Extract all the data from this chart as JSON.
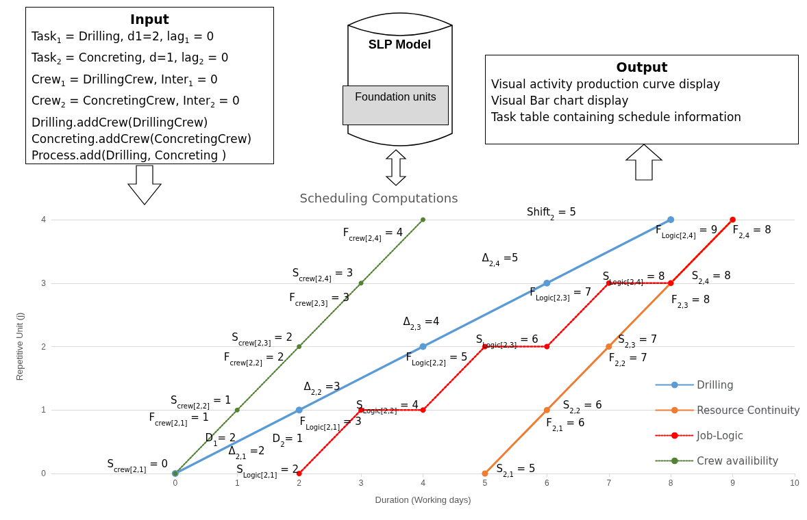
{
  "chart_data": {
    "type": "line",
    "title": "Scheduling Computations",
    "xlabel": "Duration (Working days)",
    "ylabel": "Repetitive Unit (j)",
    "xlim": [
      -2,
      10
    ],
    "xticks": [
      0,
      1,
      2,
      3,
      4,
      5,
      6,
      7,
      8,
      9,
      10
    ],
    "ylim": [
      0,
      4
    ],
    "yticks": [
      0,
      1,
      2,
      3,
      4
    ],
    "grid": "y",
    "legend": "bottom right",
    "marker": "circle",
    "series": [
      {
        "name": "Drilling",
        "color": "#5b9bd5",
        "x": [
          0,
          2,
          4,
          6,
          8
        ],
        "values": [
          0,
          1,
          2,
          3,
          4
        ],
        "line_style": "solid"
      },
      {
        "name": "Resource Continuity",
        "color": "#ed7d31",
        "x": [
          5,
          6,
          7,
          8,
          9
        ],
        "values": [
          0,
          1,
          2,
          3,
          4
        ],
        "line_style": "solid"
      },
      {
        "name": "Job-Logic",
        "color": "#ff0000",
        "x": [
          2,
          3,
          4,
          5,
          6,
          7,
          8,
          9
        ],
        "values": [
          0,
          1,
          1,
          2,
          2,
          3,
          3,
          4
        ],
        "line_style": "dotted"
      },
      {
        "name": "Crew availibility",
        "color": "#548235",
        "x": [
          0,
          1,
          2,
          3,
          4
        ],
        "values": [
          0,
          1,
          2,
          3,
          4
        ],
        "line_style": "dotted"
      }
    ],
    "annotations": [
      "Input",
      "Task$_{1}$ = Drilling, d1=2, lag$_{1}$ = 0",
      "Task$_{2}$ = Concreting, d=1, lag$_{2}$ = 0",
      "Crew$_{1}$ = DrillingCrew, Inter$_{1}$ = 0",
      "Crew$_{2}$ = ConcretingCrew, Inter$_{2}$ = 0",
      "Drilling.addCrew(DrillingCrew)",
      "Concreting.addCrew(ConcretingCrew)",
      "Process.add(Drilling, Concreting )",
      "SLP Model",
      "Foundation units",
      "Output",
      "Visual activity production curve display",
      "Visual Bar chart display",
      "Task table containing schedule information",
      "D$_{1}$= 2",
      "Δ$_{2,1}$ =2",
      "D$_{2}$= 1",
      "Δ$_{2,2}$ =3",
      "Δ$_{2,3}$ =4",
      "Δ$_{2,4}$ =5",
      "Shift$_{2}$ = 5",
      {
        "text": "F$_{crew[2,4]}$ = 4",
        "x": 4,
        "y": 4
      },
      {
        "text": "S$_{crew[2,4]}$ = 3",
        "x": 3,
        "y": 3
      },
      {
        "text": "F$_{crew[2,3]}$ = 3",
        "x": 3,
        "y": 3
      },
      {
        "text": "S$_{crew[2,3]}$ = 2",
        "x": 2,
        "y": 2
      },
      {
        "text": "F$_{crew[2,2]}$ = 2",
        "x": 2,
        "y": 2
      },
      {
        "text": "S$_{crew[2,2]}$ = 1",
        "x": 1,
        "y": 1
      },
      {
        "text": "F$_{crew[2,1]}$ = 1",
        "x": 1,
        "y": 1
      },
      {
        "text": "S$_{crew[2,1]}$ = 0",
        "x": 0,
        "y": 0
      },
      {
        "text": "S$_{Logic[2,1]}$ = 2",
        "x": 2,
        "y": 0
      },
      {
        "text": "F$_{Logic[2,1]}$ = 3",
        "x": 2,
        "y": 1
      },
      {
        "text": "S$_{Logic[2,2]}$ = 4",
        "x": 4,
        "y": 1
      },
      {
        "text": "F$_{Logic[2,2]}$ = 5",
        "x": 4,
        "y": 2
      },
      {
        "text": "S$_{Logic[2,3]}$ = 6",
        "x": 6,
        "y": 2
      },
      {
        "text": "F$_{Logic[2,3]}$ = 7",
        "x": 6,
        "y": 3
      },
      {
        "text": "S$_{Logic[2,4]}$ = 8",
        "x": 8,
        "y": 3
      },
      {
        "text": "F$_{Logic[2,4]}$ = 9",
        "x": 8,
        "y": 4
      },
      {
        "text": "F$_{2,4}$ = 8",
        "x": 9,
        "y": 4
      },
      {
        "text": "S$_{2,4}$ = 8",
        "x": 8,
        "y": 3
      },
      {
        "text": "F$_{2,3}$ = 8",
        "x": 8,
        "y": 3
      },
      {
        "text": "S$_{2,3}$ = 7",
        "x": 7,
        "y": 2
      },
      {
        "text": "F$_{2,2}$ = 7",
        "x": 7,
        "y": 2
      },
      {
        "text": "S$_{2,2}$ = 6",
        "x": 6,
        "y": 1
      },
      {
        "text": "F$_{2,1}$ = 6",
        "x": 6,
        "y": 1
      },
      {
        "text": "S$_{2,1}$ = 5",
        "x": 5,
        "y": 0
      }
    ]
  }
}
